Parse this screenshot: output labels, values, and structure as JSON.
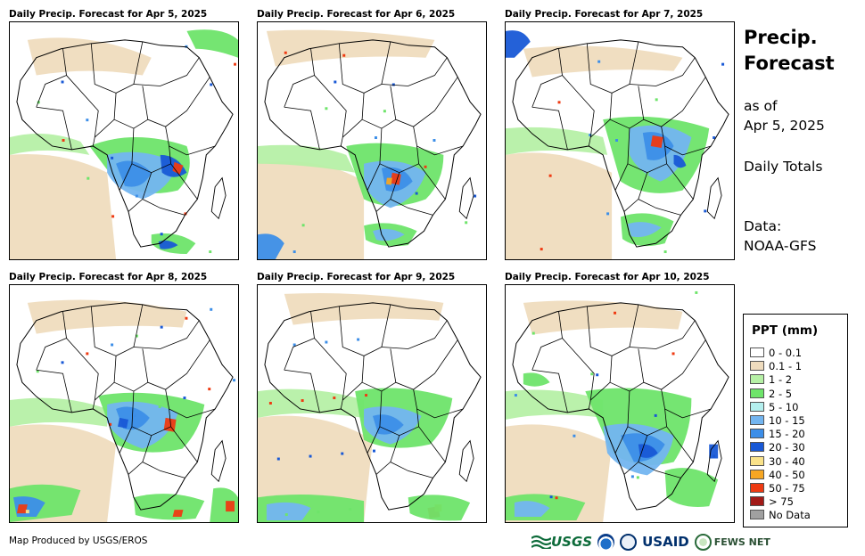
{
  "panels": [
    {
      "title": "Daily Precip. Forecast for Apr 5, 2025"
    },
    {
      "title": "Daily Precip. Forecast for Apr 6, 2025"
    },
    {
      "title": "Daily Precip. Forecast for Apr 7, 2025"
    },
    {
      "title": "Daily Precip. Forecast for Apr 8, 2025"
    },
    {
      "title": "Daily Precip. Forecast for Apr 9, 2025"
    },
    {
      "title": "Daily Precip. Forecast for Apr 10, 2025"
    }
  ],
  "side": {
    "title_line1": "Precip.",
    "title_line2": "Forecast",
    "asof_line1": "as of",
    "asof_line2": "Apr 5, 2025",
    "totals": "Daily Totals",
    "data_line1": "Data:",
    "data_line2": "NOAA-GFS"
  },
  "legend": {
    "title": "PPT (mm)",
    "items": [
      {
        "label": "0 - 0.1",
        "color": "#ffffff"
      },
      {
        "label": "0.1 - 1",
        "color": "#efdcbe"
      },
      {
        "label": "1 - 2",
        "color": "#b6f0a6"
      },
      {
        "label": "2 - 5",
        "color": "#6ee46a"
      },
      {
        "label": "5 - 10",
        "color": "#b4efee"
      },
      {
        "label": "10 - 15",
        "color": "#73b5f0"
      },
      {
        "label": "15 - 20",
        "color": "#3c8ee8"
      },
      {
        "label": "20 - 30",
        "color": "#1858d6"
      },
      {
        "label": "30 - 40",
        "color": "#f9e28a"
      },
      {
        "label": "40 - 50",
        "color": "#f6a623"
      },
      {
        "label": "50 - 75",
        "color": "#ee3a12"
      },
      {
        "label": "> 75",
        "color": "#a21a17"
      },
      {
        "label": "No Data",
        "color": "#a0a0a0"
      }
    ]
  },
  "credit": "Map Produced by USGS/EROS",
  "logos": {
    "usgs": "USGS",
    "usaid": "USAID",
    "fews": "FEWS NET"
  }
}
